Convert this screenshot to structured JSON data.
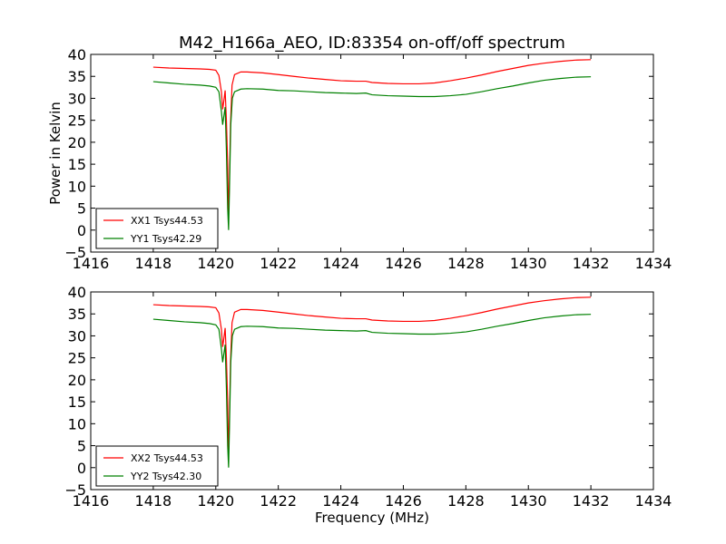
{
  "figure_title": "M42_H166a_AEO, ID:83354 on-off/off spectrum",
  "chart_data": [
    {
      "type": "line",
      "title": "M42_H166a_AEO, ID:83354 on-off/off spectrum",
      "xlabel": "",
      "ylabel": "Power in Kelvin",
      "xlim": [
        1416,
        1434
      ],
      "ylim": [
        -5,
        40
      ],
      "xticks": [
        "1416",
        "1418",
        "1420",
        "1422",
        "1424",
        "1426",
        "1428",
        "1430",
        "1432",
        "1434"
      ],
      "yticks": [
        "−5",
        "0",
        "5",
        "10",
        "15",
        "20",
        "25",
        "30",
        "35",
        "40"
      ],
      "legend_position": "lower-left",
      "series": [
        {
          "name": "XX1 Tsys44.53",
          "color": "#ff0000",
          "points": [
            [
              1418.0,
              37.1
            ],
            [
              1418.5,
              36.9
            ],
            [
              1419.0,
              36.8
            ],
            [
              1419.5,
              36.7
            ],
            [
              1419.8,
              36.6
            ],
            [
              1420.0,
              36.4
            ],
            [
              1420.1,
              35.2
            ],
            [
              1420.18,
              31.5
            ],
            [
              1420.22,
              27.5
            ],
            [
              1420.26,
              29.5
            ],
            [
              1420.3,
              31.8
            ],
            [
              1420.34,
              25.0
            ],
            [
              1420.38,
              15.0
            ],
            [
              1420.41,
              3.0
            ],
            [
              1420.43,
              9.0
            ],
            [
              1420.47,
              24.0
            ],
            [
              1420.52,
              33.0
            ],
            [
              1420.6,
              35.4
            ],
            [
              1420.8,
              36.0
            ],
            [
              1421.0,
              36.0
            ],
            [
              1421.5,
              35.8
            ],
            [
              1422.0,
              35.4
            ],
            [
              1422.5,
              35.0
            ],
            [
              1423.0,
              34.6
            ],
            [
              1423.5,
              34.3
            ],
            [
              1424.0,
              34.0
            ],
            [
              1424.5,
              33.9
            ],
            [
              1424.8,
              33.9
            ],
            [
              1425.0,
              33.6
            ],
            [
              1425.5,
              33.4
            ],
            [
              1426.0,
              33.3
            ],
            [
              1426.5,
              33.3
            ],
            [
              1427.0,
              33.5
            ],
            [
              1427.5,
              34.0
            ],
            [
              1428.0,
              34.6
            ],
            [
              1428.5,
              35.3
            ],
            [
              1429.0,
              36.1
            ],
            [
              1429.5,
              36.8
            ],
            [
              1430.0,
              37.5
            ],
            [
              1430.5,
              38.0
            ],
            [
              1431.0,
              38.4
            ],
            [
              1431.5,
              38.7
            ],
            [
              1432.0,
              38.8
            ]
          ]
        },
        {
          "name": "YY1 Tsys42.29",
          "color": "#008000",
          "points": [
            [
              1418.0,
              33.8
            ],
            [
              1418.5,
              33.5
            ],
            [
              1419.0,
              33.2
            ],
            [
              1419.5,
              33.0
            ],
            [
              1419.8,
              32.8
            ],
            [
              1420.0,
              32.5
            ],
            [
              1420.1,
              31.5
            ],
            [
              1420.18,
              27.0
            ],
            [
              1420.22,
              24.0
            ],
            [
              1420.26,
              26.0
            ],
            [
              1420.3,
              28.0
            ],
            [
              1420.34,
              18.0
            ],
            [
              1420.38,
              5.0
            ],
            [
              1420.41,
              0.0
            ],
            [
              1420.44,
              10.0
            ],
            [
              1420.48,
              24.0
            ],
            [
              1420.53,
              30.0
            ],
            [
              1420.6,
              31.5
            ],
            [
              1420.8,
              32.1
            ],
            [
              1421.0,
              32.2
            ],
            [
              1421.5,
              32.1
            ],
            [
              1422.0,
              31.8
            ],
            [
              1422.5,
              31.7
            ],
            [
              1423.0,
              31.5
            ],
            [
              1423.5,
              31.3
            ],
            [
              1424.0,
              31.2
            ],
            [
              1424.5,
              31.1
            ],
            [
              1424.8,
              31.2
            ],
            [
              1425.0,
              30.8
            ],
            [
              1425.5,
              30.6
            ],
            [
              1426.0,
              30.5
            ],
            [
              1426.5,
              30.4
            ],
            [
              1427.0,
              30.4
            ],
            [
              1427.5,
              30.6
            ],
            [
              1428.0,
              30.9
            ],
            [
              1428.5,
              31.5
            ],
            [
              1429.0,
              32.2
            ],
            [
              1429.5,
              32.8
            ],
            [
              1430.0,
              33.5
            ],
            [
              1430.5,
              34.1
            ],
            [
              1431.0,
              34.5
            ],
            [
              1431.5,
              34.8
            ],
            [
              1432.0,
              34.9
            ]
          ]
        }
      ]
    },
    {
      "type": "line",
      "title": "",
      "xlabel": "Frequency (MHz)",
      "ylabel": "",
      "xlim": [
        1416,
        1434
      ],
      "ylim": [
        -5,
        40
      ],
      "xticks": [
        "1416",
        "1418",
        "1420",
        "1422",
        "1424",
        "1426",
        "1428",
        "1430",
        "1432",
        "1434"
      ],
      "yticks": [
        "−5",
        "0",
        "5",
        "10",
        "15",
        "20",
        "25",
        "30",
        "35",
        "40"
      ],
      "legend_position": "lower-left",
      "series": [
        {
          "name": "XX2 Tsys44.53",
          "color": "#ff0000",
          "points": [
            [
              1418.0,
              37.1
            ],
            [
              1418.5,
              36.9
            ],
            [
              1419.0,
              36.8
            ],
            [
              1419.5,
              36.7
            ],
            [
              1419.8,
              36.6
            ],
            [
              1420.0,
              36.4
            ],
            [
              1420.1,
              35.2
            ],
            [
              1420.18,
              31.5
            ],
            [
              1420.22,
              27.5
            ],
            [
              1420.26,
              29.5
            ],
            [
              1420.3,
              31.8
            ],
            [
              1420.34,
              25.0
            ],
            [
              1420.38,
              15.0
            ],
            [
              1420.41,
              3.0
            ],
            [
              1420.43,
              9.0
            ],
            [
              1420.47,
              24.0
            ],
            [
              1420.52,
              33.0
            ],
            [
              1420.6,
              35.4
            ],
            [
              1420.8,
              36.0
            ],
            [
              1421.0,
              36.0
            ],
            [
              1421.5,
              35.8
            ],
            [
              1422.0,
              35.4
            ],
            [
              1422.5,
              35.0
            ],
            [
              1423.0,
              34.6
            ],
            [
              1423.5,
              34.3
            ],
            [
              1424.0,
              34.0
            ],
            [
              1424.5,
              33.9
            ],
            [
              1424.8,
              33.9
            ],
            [
              1425.0,
              33.6
            ],
            [
              1425.5,
              33.4
            ],
            [
              1426.0,
              33.3
            ],
            [
              1426.5,
              33.3
            ],
            [
              1427.0,
              33.5
            ],
            [
              1427.5,
              34.0
            ],
            [
              1428.0,
              34.6
            ],
            [
              1428.5,
              35.3
            ],
            [
              1429.0,
              36.1
            ],
            [
              1429.5,
              36.8
            ],
            [
              1430.0,
              37.5
            ],
            [
              1430.5,
              38.0
            ],
            [
              1431.0,
              38.4
            ],
            [
              1431.5,
              38.7
            ],
            [
              1432.0,
              38.8
            ]
          ]
        },
        {
          "name": "YY2 Tsys42.30",
          "color": "#008000",
          "points": [
            [
              1418.0,
              33.8
            ],
            [
              1418.5,
              33.5
            ],
            [
              1419.0,
              33.2
            ],
            [
              1419.5,
              33.0
            ],
            [
              1419.8,
              32.8
            ],
            [
              1420.0,
              32.5
            ],
            [
              1420.1,
              31.5
            ],
            [
              1420.18,
              27.0
            ],
            [
              1420.22,
              24.0
            ],
            [
              1420.26,
              26.0
            ],
            [
              1420.3,
              28.0
            ],
            [
              1420.34,
              18.0
            ],
            [
              1420.38,
              5.0
            ],
            [
              1420.41,
              0.0
            ],
            [
              1420.44,
              10.0
            ],
            [
              1420.48,
              24.0
            ],
            [
              1420.53,
              30.0
            ],
            [
              1420.6,
              31.5
            ],
            [
              1420.8,
              32.1
            ],
            [
              1421.0,
              32.2
            ],
            [
              1421.5,
              32.1
            ],
            [
              1422.0,
              31.8
            ],
            [
              1422.5,
              31.7
            ],
            [
              1423.0,
              31.5
            ],
            [
              1423.5,
              31.3
            ],
            [
              1424.0,
              31.2
            ],
            [
              1424.5,
              31.1
            ],
            [
              1424.8,
              31.2
            ],
            [
              1425.0,
              30.8
            ],
            [
              1425.5,
              30.6
            ],
            [
              1426.0,
              30.5
            ],
            [
              1426.5,
              30.4
            ],
            [
              1427.0,
              30.4
            ],
            [
              1427.5,
              30.6
            ],
            [
              1428.0,
              30.9
            ],
            [
              1428.5,
              31.5
            ],
            [
              1429.0,
              32.2
            ],
            [
              1429.5,
              32.8
            ],
            [
              1430.0,
              33.5
            ],
            [
              1430.5,
              34.1
            ],
            [
              1431.0,
              34.5
            ],
            [
              1431.5,
              34.8
            ],
            [
              1432.0,
              34.9
            ]
          ]
        }
      ]
    }
  ]
}
